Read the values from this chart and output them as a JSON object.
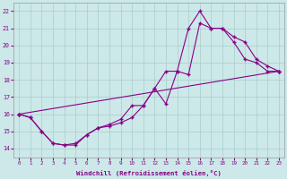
{
  "xlabel": "Windchill (Refroidissement éolien,°C)",
  "xlim": [
    -0.5,
    23.5
  ],
  "ylim": [
    13.5,
    22.5
  ],
  "xticks": [
    0,
    1,
    2,
    3,
    4,
    5,
    6,
    7,
    8,
    9,
    10,
    11,
    12,
    13,
    14,
    15,
    16,
    17,
    18,
    19,
    20,
    21,
    22,
    23
  ],
  "yticks": [
    14,
    15,
    16,
    17,
    18,
    19,
    20,
    21,
    22
  ],
  "bg_color": "#cce8e8",
  "line_color": "#880088",
  "grid_color": "#aacccc",
  "line1_x": [
    0,
    1,
    2,
    3,
    4,
    5,
    6,
    7,
    8,
    9,
    10,
    11,
    12,
    13,
    14,
    15,
    16,
    17,
    18,
    19,
    20,
    21,
    22,
    23
  ],
  "line1_y": [
    16.0,
    15.8,
    15.0,
    14.3,
    14.2,
    14.2,
    14.8,
    15.2,
    15.3,
    15.5,
    15.8,
    16.5,
    17.5,
    18.5,
    18.5,
    21.0,
    22.0,
    21.0,
    21.0,
    20.2,
    19.2,
    19.0,
    18.5,
    18.5
  ],
  "line2_x": [
    0,
    1,
    2,
    3,
    4,
    5,
    6,
    7,
    8,
    9,
    10,
    11,
    12,
    13,
    14,
    15,
    16,
    17,
    18,
    19,
    20,
    21,
    22,
    23
  ],
  "line2_y": [
    16.0,
    15.8,
    15.0,
    14.3,
    14.2,
    14.3,
    14.8,
    15.2,
    15.4,
    15.7,
    16.5,
    16.5,
    17.5,
    16.6,
    18.5,
    18.3,
    21.3,
    21.0,
    21.0,
    20.5,
    20.2,
    19.2,
    18.8,
    18.5
  ],
  "line3_x": [
    0,
    23
  ],
  "line3_y": [
    16.0,
    18.5
  ]
}
